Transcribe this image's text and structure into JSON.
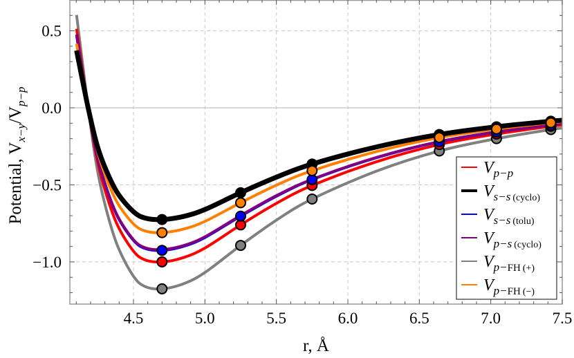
{
  "chart_data": {
    "type": "line",
    "title": "",
    "xlabel": "r, Å",
    "ylabel": {
      "main": "Potential, V",
      "sub1": "x−y",
      "slash": "/V",
      "sub2": "p−p"
    },
    "xlim": [
      4.055,
      7.5
    ],
    "ylim": [
      -1.274,
      0.7
    ],
    "xticks": [
      4.5,
      5.0,
      5.5,
      6.0,
      6.5,
      7.0,
      7.5
    ],
    "xtick_labels": [
      "4.5",
      "5.0",
      "5.5",
      "6.0",
      "6.5",
      "7.0",
      "7.5"
    ],
    "yticks": [
      0.5,
      0.0,
      -0.5,
      -1.0
    ],
    "ytick_labels": [
      "0.5",
      "0.0",
      "−0.5",
      "−1.0"
    ],
    "grid": true,
    "legend_position": "bottom-right",
    "curve_x": [
      4.102,
      4.183,
      4.245,
      4.309,
      4.39,
      4.5,
      4.584,
      4.7,
      4.85,
      5.0,
      5.25,
      5.5,
      5.75,
      6.2,
      6.64,
      7.04,
      7.42,
      7.5
    ],
    "marker_x": [
      4.7,
      5.25,
      5.75,
      6.64,
      7.04,
      7.42
    ],
    "series": [
      {
        "key": "gray",
        "legend": {
          "main": "V",
          "sub": "p−",
          "sub_roman": "FH",
          "suffix": "(+)"
        },
        "color": "#808080",
        "width": 4,
        "markers": true,
        "curve_y": [
          0.603,
          0,
          -0.39,
          -0.657,
          -0.899,
          -1.093,
          -1.161,
          -1.175,
          -1.142,
          -1.069,
          -0.893,
          -0.729,
          -0.592,
          -0.411,
          -0.28,
          -0.2,
          -0.141,
          -0.132
        ],
        "marker_y": [
          -1.175,
          -0.893,
          -0.592,
          -0.28,
          -0.2,
          -0.141
        ]
      },
      {
        "key": "red",
        "legend": {
          "main": "V",
          "sub": "p−p",
          "sub_roman": "",
          "suffix": ""
        },
        "color": "#ff0000",
        "width": 4,
        "markers": true,
        "curve_y": [
          0.513,
          0,
          -0.332,
          -0.559,
          -0.765,
          -0.93,
          -0.988,
          -1.0,
          -0.972,
          -0.91,
          -0.76,
          -0.62,
          -0.504,
          -0.35,
          -0.238,
          -0.17,
          -0.12,
          -0.112
        ],
        "marker_y": [
          -1.0,
          -0.76,
          -0.504,
          -0.238,
          -0.17,
          -0.12
        ]
      },
      {
        "key": "blue",
        "legend": {
          "main": "V",
          "sub": "s−s",
          "sub_roman": "",
          "suffix": "(tolu)"
        },
        "color": "#0000ff",
        "width": 4,
        "markers": true,
        "curve_y": [
          0.475,
          0,
          -0.307,
          -0.517,
          -0.708,
          -0.86,
          -0.914,
          -0.925,
          -0.899,
          -0.842,
          -0.703,
          -0.574,
          -0.466,
          -0.324,
          -0.22,
          -0.157,
          -0.111,
          -0.104
        ],
        "marker_y": [
          -0.925,
          -0.703,
          -0.466,
          -0.22,
          -0.157,
          -0.111
        ]
      },
      {
        "key": "purple",
        "legend": {
          "main": "V",
          "sub": "p−s",
          "sub_roman": "",
          "suffix": "(cyclo)"
        },
        "color": "#800080",
        "width": 4,
        "markers": false,
        "curve_y": [
          0.472,
          0,
          -0.305,
          -0.514,
          -0.704,
          -0.856,
          -0.909,
          -0.92,
          -0.894,
          -0.837,
          -0.699,
          -0.57,
          -0.464,
          -0.322,
          -0.219,
          -0.156,
          -0.11,
          -0.103
        ],
        "marker_y": []
      },
      {
        "key": "black",
        "legend": {
          "main": "V",
          "sub": "s−s",
          "sub_roman": "",
          "suffix": "(cyclo)"
        },
        "color": "#000000",
        "width": 7,
        "markers": true,
        "curve_y": [
          0.372,
          0,
          -0.241,
          -0.405,
          -0.555,
          -0.674,
          -0.716,
          -0.725,
          -0.705,
          -0.66,
          -0.551,
          -0.45,
          -0.365,
          -0.254,
          -0.173,
          -0.123,
          -0.087,
          -0.081
        ],
        "marker_y": [
          -0.725,
          -0.551,
          -0.365,
          -0.173,
          -0.123,
          -0.087
        ]
      },
      {
        "key": "orange",
        "legend": {
          "main": "V",
          "sub": "p−",
          "sub_roman": "FH",
          "suffix": "(−)"
        },
        "color": "#ff8000",
        "width": 4,
        "markers": true,
        "curve_y": [
          0.416,
          0,
          -0.269,
          -0.453,
          -0.62,
          -0.753,
          -0.8,
          -0.81,
          -0.787,
          -0.737,
          -0.616,
          -0.502,
          -0.408,
          -0.284,
          -0.193,
          -0.138,
          -0.097,
          -0.091
        ],
        "marker_y": [
          -0.81,
          -0.616,
          -0.408,
          -0.193,
          -0.138,
          -0.097
        ]
      }
    ],
    "legend_order": [
      "red",
      "black",
      "blue",
      "purple",
      "gray",
      "orange"
    ]
  }
}
